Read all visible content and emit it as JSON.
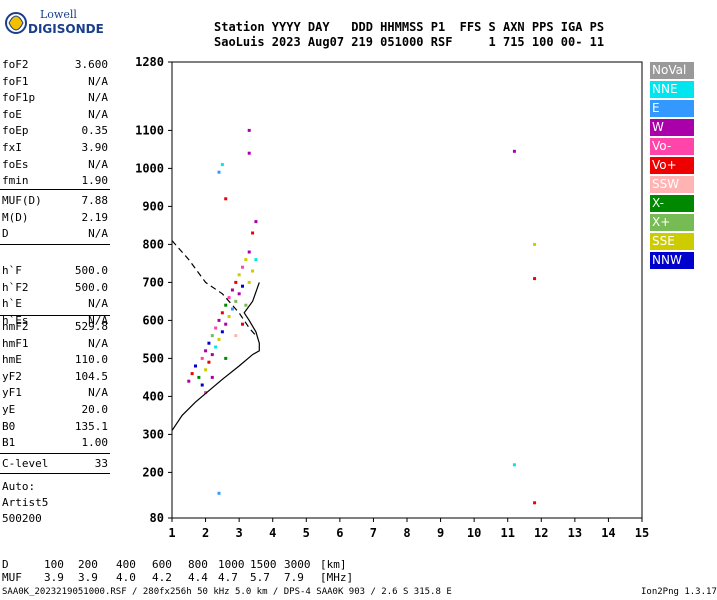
{
  "logo": {
    "line1": "Lowell",
    "line2": "DIGISONDE"
  },
  "header": {
    "line1": "Station YYYY DAY   DDD HHMMSS P1  FFS S AXN PPS IGA PS",
    "line2": "SaoLuis 2023 Aug07 219 051000 RSF     1 715 100 00- 11"
  },
  "params_group1": [
    {
      "label": "foF2",
      "value": "3.600"
    },
    {
      "label": "foF1",
      "value": "N/A"
    },
    {
      "label": "foF1p",
      "value": "N/A"
    },
    {
      "label": "foE",
      "value": "N/A"
    },
    {
      "label": "foEp",
      "value": "0.35"
    },
    {
      "label": "fxI",
      "value": "3.90"
    },
    {
      "label": "foEs",
      "value": "N/A"
    },
    {
      "label": "fmin",
      "value": "1.90"
    }
  ],
  "params_group2": [
    {
      "label": "MUF(D)",
      "value": "7.88"
    },
    {
      "label": "M(D)",
      "value": "2.19"
    },
    {
      "label": "D",
      "value": "N/A"
    }
  ],
  "params_group3": [
    {
      "label": "h`F",
      "value": "500.0"
    },
    {
      "label": "h`F2",
      "value": "500.0"
    },
    {
      "label": "h`E",
      "value": "N/A"
    },
    {
      "label": "h`Es",
      "value": "N/A"
    }
  ],
  "params_group4": [
    {
      "label": "hmF2",
      "value": "529.8"
    },
    {
      "label": "hmF1",
      "value": "N/A"
    },
    {
      "label": "hmE",
      "value": "110.0"
    },
    {
      "label": "yF2",
      "value": "104.5"
    },
    {
      "label": "yF1",
      "value": "N/A"
    },
    {
      "label": "yE",
      "value": "20.0"
    },
    {
      "label": "B0",
      "value": "135.1"
    },
    {
      "label": "B1",
      "value": "1.00"
    }
  ],
  "clevel": {
    "label": "C-level",
    "value": "33"
  },
  "auto": {
    "line1": "Auto:",
    "line2": "Artist5",
    "line3": "500200"
  },
  "legend": [
    {
      "label": "NoVal",
      "color": "#999999"
    },
    {
      "label": "NNE",
      "color": "#00e5ee"
    },
    {
      "label": "E",
      "color": "#3399ff"
    },
    {
      "label": "W",
      "color": "#aa00aa"
    },
    {
      "label": "Vo-",
      "color": "#ff44aa"
    },
    {
      "label": "Vo+",
      "color": "#ee0000"
    },
    {
      "label": "SSW",
      "color": "#ffb3b3"
    },
    {
      "label": "X-",
      "color": "#008800"
    },
    {
      "label": "X+",
      "color": "#77bb55"
    },
    {
      "label": "SSE",
      "color": "#cccc00"
    },
    {
      "label": "NNW",
      "color": "#0000cc"
    }
  ],
  "chart_data": {
    "type": "scatter",
    "title": "",
    "xlabel": "",
    "ylabel": "",
    "xlim": [
      1,
      15
    ],
    "ylim": [
      80,
      1280
    ],
    "x_ticks": [
      "1",
      "2",
      "3",
      "4",
      "5",
      "6",
      "7",
      "8",
      "9",
      "10",
      "11",
      "12",
      "13",
      "14",
      "15"
    ],
    "y_ticks": [
      "80",
      "200",
      "300",
      "400",
      "500",
      "600",
      "700",
      "800",
      "900",
      "1000",
      "1100",
      "1280"
    ],
    "profile_curve": [
      [
        1.0,
        310
      ],
      [
        1.3,
        350
      ],
      [
        1.7,
        385
      ],
      [
        2.1,
        415
      ],
      [
        2.5,
        445
      ],
      [
        3.0,
        480
      ],
      [
        3.4,
        510
      ],
      [
        3.6,
        520
      ],
      [
        3.6,
        540
      ],
      [
        3.5,
        570
      ],
      [
        3.3,
        600
      ],
      [
        3.15,
        620
      ],
      [
        3.4,
        650
      ],
      [
        3.6,
        700
      ]
    ],
    "trace_dashed": [
      [
        1.0,
        810
      ],
      [
        1.5,
        760
      ],
      [
        2.0,
        700
      ],
      [
        2.5,
        670
      ],
      [
        2.8,
        640
      ],
      [
        3.0,
        620
      ],
      [
        3.3,
        580
      ],
      [
        3.5,
        560
      ]
    ],
    "echo_points": [
      {
        "x": 1.5,
        "y": 440,
        "c": "W"
      },
      {
        "x": 1.6,
        "y": 460,
        "c": "Vo+"
      },
      {
        "x": 1.7,
        "y": 480,
        "c": "NNW"
      },
      {
        "x": 1.8,
        "y": 450,
        "c": "X-"
      },
      {
        "x": 1.9,
        "y": 500,
        "c": "Vo-"
      },
      {
        "x": 2.0,
        "y": 520,
        "c": "W"
      },
      {
        "x": 2.0,
        "y": 470,
        "c": "SSE"
      },
      {
        "x": 2.1,
        "y": 540,
        "c": "NNW"
      },
      {
        "x": 2.1,
        "y": 490,
        "c": "Vo+"
      },
      {
        "x": 2.2,
        "y": 560,
        "c": "X+"
      },
      {
        "x": 2.2,
        "y": 510,
        "c": "W"
      },
      {
        "x": 2.3,
        "y": 580,
        "c": "Vo-"
      },
      {
        "x": 2.3,
        "y": 530,
        "c": "NNE"
      },
      {
        "x": 2.4,
        "y": 600,
        "c": "W"
      },
      {
        "x": 2.4,
        "y": 550,
        "c": "SSE"
      },
      {
        "x": 2.5,
        "y": 620,
        "c": "Vo+"
      },
      {
        "x": 2.5,
        "y": 570,
        "c": "NNW"
      },
      {
        "x": 2.6,
        "y": 640,
        "c": "X-"
      },
      {
        "x": 2.6,
        "y": 590,
        "c": "W"
      },
      {
        "x": 2.7,
        "y": 660,
        "c": "Vo-"
      },
      {
        "x": 2.7,
        "y": 610,
        "c": "SSE"
      },
      {
        "x": 2.8,
        "y": 680,
        "c": "W"
      },
      {
        "x": 2.8,
        "y": 630,
        "c": "E"
      },
      {
        "x": 2.9,
        "y": 700,
        "c": "Vo+"
      },
      {
        "x": 2.9,
        "y": 650,
        "c": "X+"
      },
      {
        "x": 3.0,
        "y": 720,
        "c": "SSE"
      },
      {
        "x": 3.0,
        "y": 670,
        "c": "W"
      },
      {
        "x": 3.1,
        "y": 740,
        "c": "Vo-"
      },
      {
        "x": 3.1,
        "y": 690,
        "c": "NNW"
      },
      {
        "x": 3.2,
        "y": 760,
        "c": "SSE"
      },
      {
        "x": 3.2,
        "y": 640,
        "c": "X+"
      },
      {
        "x": 3.3,
        "y": 780,
        "c": "W"
      },
      {
        "x": 3.3,
        "y": 700,
        "c": "SSE"
      },
      {
        "x": 3.4,
        "y": 830,
        "c": "Vo+"
      },
      {
        "x": 3.4,
        "y": 730,
        "c": "SSE"
      },
      {
        "x": 3.5,
        "y": 860,
        "c": "W"
      },
      {
        "x": 3.5,
        "y": 760,
        "c": "NNE"
      },
      {
        "x": 2.6,
        "y": 920,
        "c": "Vo+"
      },
      {
        "x": 3.3,
        "y": 1040,
        "c": "W"
      },
      {
        "x": 3.3,
        "y": 1100,
        "c": "W"
      },
      {
        "x": 2.5,
        "y": 1010,
        "c": "NNE"
      },
      {
        "x": 2.4,
        "y": 990,
        "c": "E"
      },
      {
        "x": 1.9,
        "y": 430,
        "c": "NNW"
      },
      {
        "x": 2.0,
        "y": 410,
        "c": "Vo-"
      },
      {
        "x": 2.2,
        "y": 450,
        "c": "W"
      },
      {
        "x": 2.6,
        "y": 500,
        "c": "X-"
      },
      {
        "x": 2.9,
        "y": 560,
        "c": "SSW"
      },
      {
        "x": 3.1,
        "y": 590,
        "c": "Vo+"
      },
      {
        "x": 11.2,
        "y": 1045,
        "c": "W"
      },
      {
        "x": 11.2,
        "y": 220,
        "c": "NNE"
      },
      {
        "x": 11.8,
        "y": 710,
        "c": "Vo+"
      },
      {
        "x": 11.8,
        "y": 800,
        "c": "SSE"
      },
      {
        "x": 11.8,
        "y": 120,
        "c": "Vo+"
      },
      {
        "x": 2.4,
        "y": 145,
        "c": "E"
      }
    ]
  },
  "distance_row": {
    "label": "D",
    "values": [
      "100",
      "200",
      "400",
      "600",
      "800",
      "1000",
      "1500",
      "3000"
    ],
    "unit": "[km]"
  },
  "muf_row": {
    "label": "MUF",
    "values": [
      "3.9",
      "3.9",
      "4.0",
      "4.2",
      "4.4",
      "4.7",
      "5.7",
      "7.9"
    ],
    "unit": "[MHz]"
  },
  "footer_note": "SAA0K_2023219051000.RSF / 280fx256h 50 kHz 5.0 km / DPS-4 SAA0K 903 / 2.6 S 315.8 E",
  "version": "Ion2Png 1.3.17"
}
